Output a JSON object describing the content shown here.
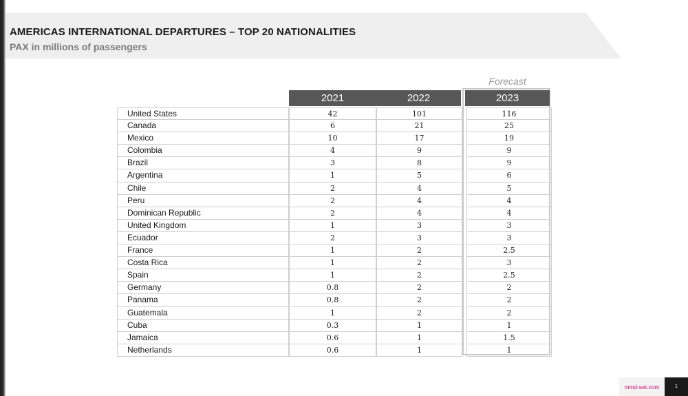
{
  "title": "AMERICAS INTERNATIONAL DEPARTURES – TOP 20 NATIONALITIES",
  "subtitle": "PAX in millions of passengers",
  "forecast_label": "Forecast",
  "columns": [
    "2021",
    "2022",
    "2023"
  ],
  "rows": [
    {
      "name": "United States",
      "v2021": "42",
      "v2022": "101",
      "v2023": "116"
    },
    {
      "name": "Canada",
      "v2021": "6",
      "v2022": "21",
      "v2023": "25"
    },
    {
      "name": "Mexico",
      "v2021": "10",
      "v2022": "17",
      "v2023": "19"
    },
    {
      "name": "Colombia",
      "v2021": "4",
      "v2022": "9",
      "v2023": "9"
    },
    {
      "name": "Brazil",
      "v2021": "3",
      "v2022": "8",
      "v2023": "9"
    },
    {
      "name": "Argentina",
      "v2021": "1",
      "v2022": "5",
      "v2023": "6"
    },
    {
      "name": "Chile",
      "v2021": "2",
      "v2022": "4",
      "v2023": "5"
    },
    {
      "name": "Peru",
      "v2021": "2",
      "v2022": "4",
      "v2023": "4"
    },
    {
      "name": "Dominican Republic",
      "v2021": "2",
      "v2022": "4",
      "v2023": "4"
    },
    {
      "name": "United Kingdom",
      "v2021": "1",
      "v2022": "3",
      "v2023": "3"
    },
    {
      "name": "Ecuador",
      "v2021": "2",
      "v2022": "3",
      "v2023": "3"
    },
    {
      "name": "France",
      "v2021": "1",
      "v2022": "2",
      "v2023": "2.5"
    },
    {
      "name": "Costa Rica",
      "v2021": "1",
      "v2022": "2",
      "v2023": "3"
    },
    {
      "name": "Spain",
      "v2021": "1",
      "v2022": "2",
      "v2023": "2.5"
    },
    {
      "name": "Germany",
      "v2021": "0.8",
      "v2022": "2",
      "v2023": "2"
    },
    {
      "name": "Panama",
      "v2021": "0.8",
      "v2022": "2",
      "v2023": "2"
    },
    {
      "name": "Guatemala",
      "v2021": "1",
      "v2022": "2",
      "v2023": "2"
    },
    {
      "name": "Cuba",
      "v2021": "0.3",
      "v2022": "1",
      "v2023": "1"
    },
    {
      "name": "Jamaica",
      "v2021": "0.6",
      "v2022": "1",
      "v2023": "1.5"
    },
    {
      "name": "Netherlands",
      "v2021": "0.6",
      "v2022": "1",
      "v2023": "1"
    }
  ],
  "footer": {
    "brand": "mind-set.com",
    "page_number": "1"
  }
}
